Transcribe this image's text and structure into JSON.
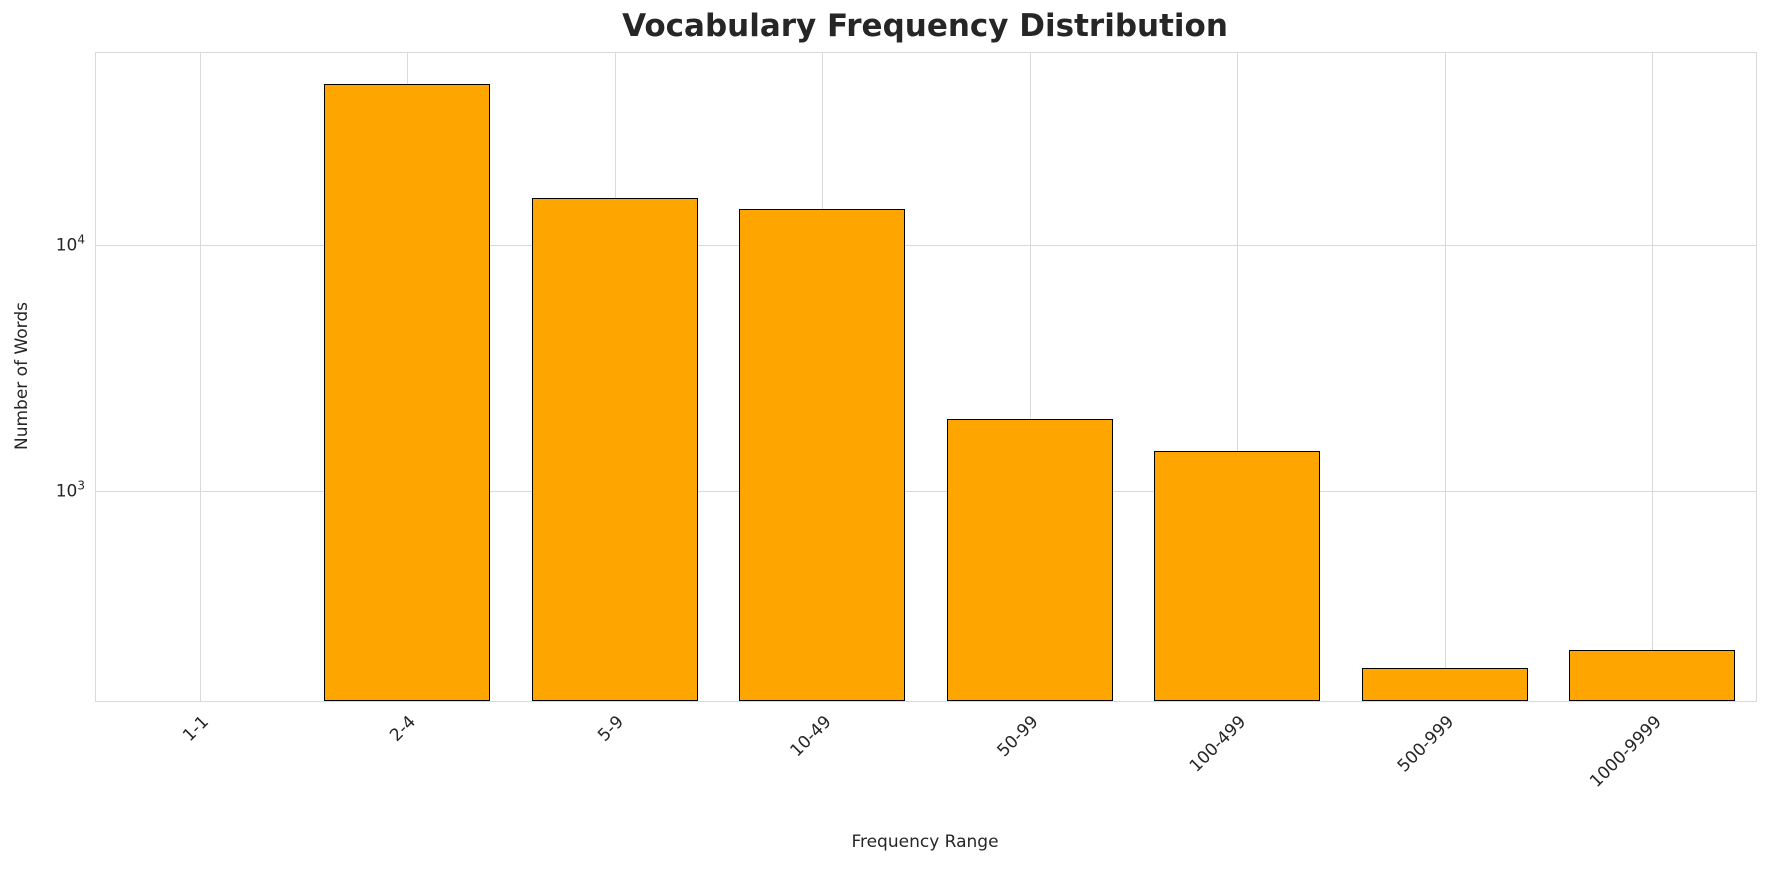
{
  "chart_data": {
    "type": "bar",
    "title": "Vocabulary Frequency Distribution",
    "xlabel": "Frequency Range",
    "ylabel": "Number of Words",
    "categories": [
      "1-1",
      "2-4",
      "5-9",
      "10-49",
      "50-99",
      "100-499",
      "500-999",
      "1000-9999"
    ],
    "values": [
      0,
      45000,
      15500,
      14000,
      1950,
      1450,
      190,
      225
    ],
    "yscale": "log",
    "ylim": [
      140,
      60000
    ],
    "yticks": [
      1000,
      10000
    ],
    "ytick_labels": [
      "10^3",
      "10^4"
    ],
    "grid": true,
    "legend": "none",
    "bar_color": "#FFA500",
    "bar_edge_color": "#000000",
    "grid_color": "#d9d9d9",
    "text_color": "#262626",
    "background_color": "#ffffff"
  }
}
